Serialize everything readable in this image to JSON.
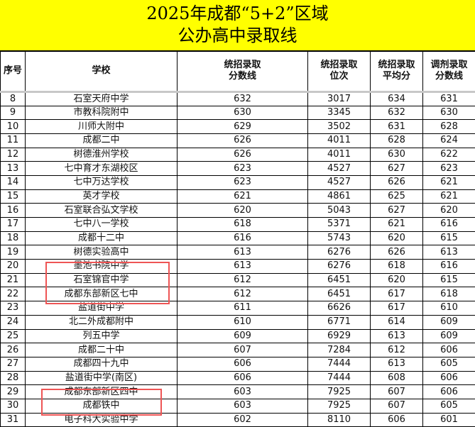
{
  "title": {
    "line1": "2025年成都“5+2”区域",
    "line2": "公办高中录取线"
  },
  "columns": [
    "序号",
    "学校",
    "统招录取\n分数线",
    "统招录取\n位次",
    "统招录取\n平均分",
    "调剂录取\n分数线"
  ],
  "columns_lines": [
    [
      "序号"
    ],
    [
      "学校"
    ],
    [
      "统招录取",
      "分数线"
    ],
    [
      "统招录取",
      "位次"
    ],
    [
      "统招录取",
      "平均分"
    ],
    [
      "调剂录取",
      "分数线"
    ]
  ],
  "rows": [
    [
      "8",
      "石室天府中学",
      "632",
      "3017",
      "634",
      "631"
    ],
    [
      "9",
      "市教科院附中",
      "630",
      "3345",
      "632",
      "630"
    ],
    [
      "10",
      "川师大附中",
      "629",
      "3502",
      "631",
      "628"
    ],
    [
      "11",
      "成都二中",
      "626",
      "4011",
      "628",
      "624"
    ],
    [
      "12",
      "树德淮州学校",
      "626",
      "4011",
      "630",
      "622"
    ],
    [
      "13",
      "七中育才东湖校区",
      "623",
      "4527",
      "627",
      "623"
    ],
    [
      "14",
      "七中万达学校",
      "623",
      "4527",
      "626",
      "621"
    ],
    [
      "15",
      "英才学校",
      "621",
      "4861",
      "625",
      "621"
    ],
    [
      "16",
      "石室联合弘文学校",
      "620",
      "5043",
      "627",
      "620"
    ],
    [
      "17",
      "七中八一学校",
      "618",
      "5371",
      "621",
      "616"
    ],
    [
      "18",
      "成都十二中",
      "616",
      "5743",
      "620",
      "615"
    ],
    [
      "19",
      "树德实验高中",
      "613",
      "6276",
      "626",
      "613"
    ],
    [
      "20",
      "墨池书院中学",
      "613",
      "6276",
      "618",
      "616"
    ],
    [
      "21",
      "石室锦官中学",
      "612",
      "6451",
      "620",
      "615"
    ],
    [
      "22",
      "成都东部新区七中",
      "612",
      "6451",
      "617",
      "618"
    ],
    [
      "23",
      "盐道街中学",
      "611",
      "6626",
      "617",
      "610"
    ],
    [
      "24",
      "北二外成都附中",
      "610",
      "6771",
      "614",
      "609"
    ],
    [
      "25",
      "列五中学",
      "609",
      "6929",
      "613",
      "609"
    ],
    [
      "26",
      "成都二十中",
      "607",
      "7284",
      "612",
      "606"
    ],
    [
      "27",
      "成都四十九中",
      "606",
      "7444",
      "613",
      "605"
    ],
    [
      "28",
      "盐道街中学(南区)",
      "606",
      "7444",
      "608",
      "606"
    ],
    [
      "29",
      "成都东部新区四中",
      "603",
      "7925",
      "607",
      "606"
    ],
    [
      "30",
      "成都铁中",
      "603",
      "7925",
      "607",
      "605"
    ],
    [
      "31",
      "电子科大实验中学",
      "602",
      "8110",
      "606",
      "601"
    ]
  ],
  "highlight_color": "#ee5555",
  "title_bg": "#ffff00"
}
